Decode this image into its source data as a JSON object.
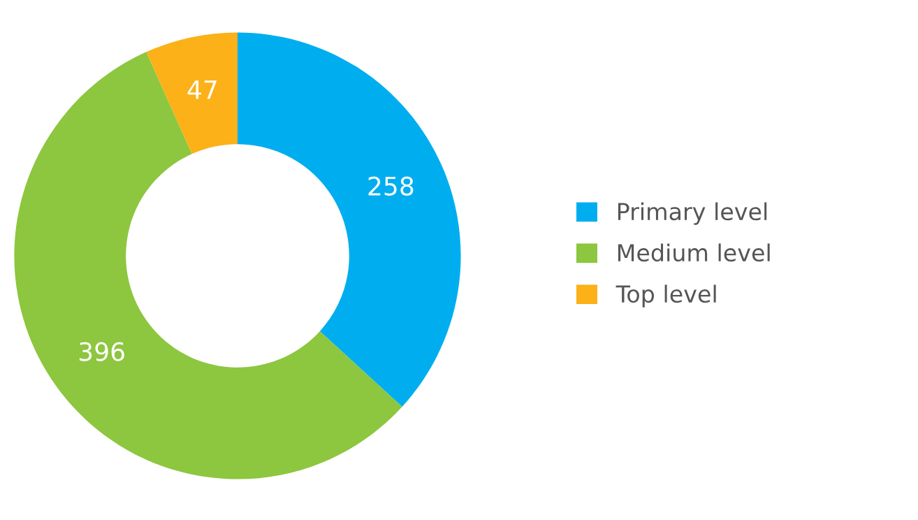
{
  "chart_data": {
    "type": "donut",
    "categories": [
      "Primary level",
      "Medium level",
      "Top level"
    ],
    "values": [
      258,
      396,
      47
    ],
    "colors": [
      "#00aeef",
      "#8dc63f",
      "#fbb117"
    ],
    "data_labels": true,
    "legend": "right"
  }
}
